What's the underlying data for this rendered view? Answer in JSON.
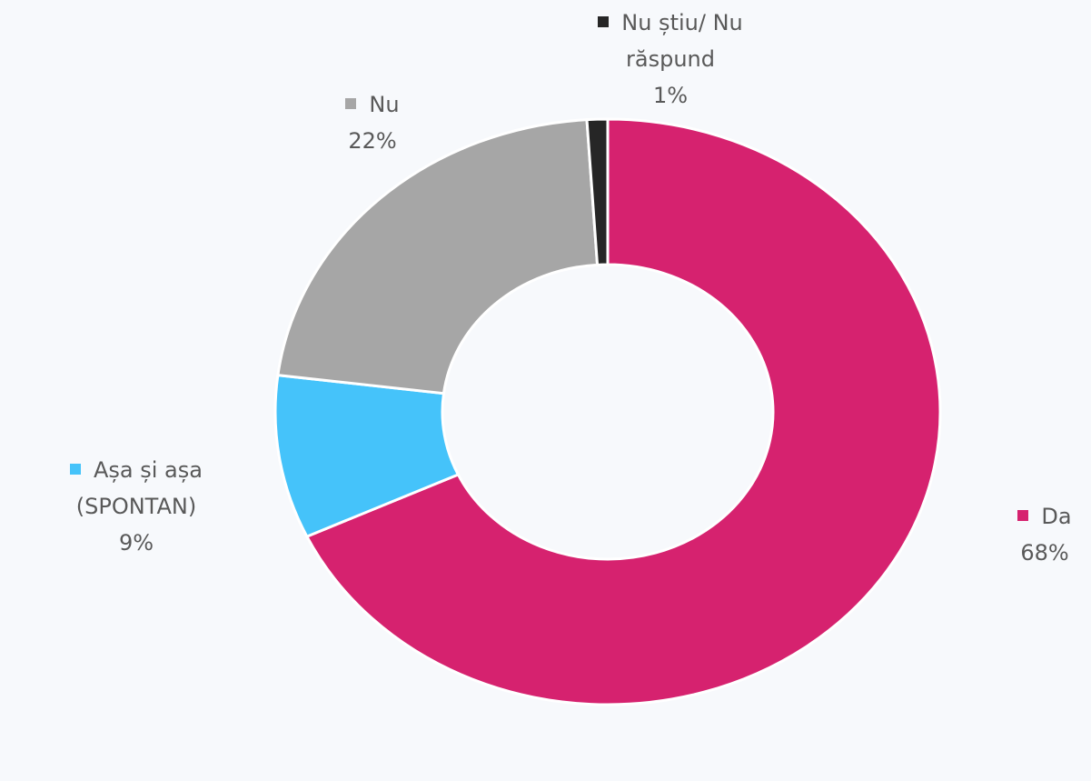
{
  "chart_data": {
    "type": "donut",
    "categories": [
      "Da",
      "Așa și așa (SPONTAN)",
      "Nu",
      "Nu știu/ Nu răspund"
    ],
    "values": [
      68,
      9,
      22,
      1
    ],
    "value_labels": [
      "68%",
      "9%",
      "22%",
      "1%"
    ],
    "colors": [
      "#d6226f",
      "#45c3fa",
      "#a6a6a6",
      "#262626"
    ]
  }
}
